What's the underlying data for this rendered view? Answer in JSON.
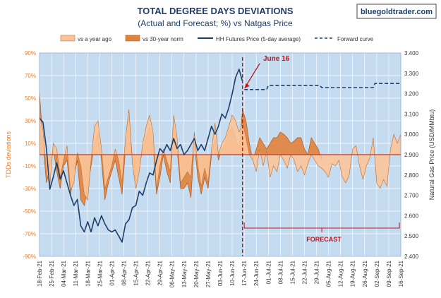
{
  "chart_data": {
    "type": "area",
    "title": "TOTAL DEGREE DAYS DEVIATIONS",
    "subtitle": "(Actual and Forecast; %) vs Natgas Price",
    "brand": "bluegoldtrader.com",
    "ylabel_left": "TDDs deviations",
    "ylabel_right": "Natural Gas Price (USD/MMbtu)",
    "ylim_left": [
      -90,
      90
    ],
    "ylim_right": [
      2.4,
      3.4
    ],
    "yticks_left": [
      "90%",
      "70%",
      "50%",
      "30%",
      "10%",
      "-10%",
      "-30%",
      "-50%",
      "-70%",
      "-90%"
    ],
    "yticks_right": [
      "3.400",
      "3.300",
      "3.200",
      "3.100",
      "3.000",
      "2.900",
      "2.800",
      "2.700",
      "2.600",
      "2.500",
      "2.400"
    ],
    "x_range": [
      "2021-02-18",
      "2021-09-16"
    ],
    "xticks": [
      "18-Feb-21",
      "25-Feb-21",
      "04-Mar-21",
      "11-Mar-21",
      "18-Mar-21",
      "25-Mar-21",
      "01-Apr-21",
      "08-Apr-21",
      "15-Apr-21",
      "22-Apr-21",
      "29-Apr-21",
      "06-May-21",
      "13-May-21",
      "20-May-21",
      "27-May-21",
      "03-Jun-21",
      "10-Jun-21",
      "17-Jun-21",
      "24-Jun-21",
      "01-Jul-21",
      "08-Jul-21",
      "15-Jul-21",
      "22-Jul-21",
      "29-Jul-21",
      "05-Aug-21",
      "12-Aug-21",
      "19-Aug-21",
      "26-Aug-21",
      "02-Sep-21",
      "09-Sep-21",
      "16-Sep-21"
    ],
    "legend": [
      {
        "label": "vs a year ago",
        "kind": "area",
        "color": "#F9C49A"
      },
      {
        "label": "vs 30-year norm",
        "kind": "area",
        "color": "#E0823B"
      },
      {
        "label": "HH Futures Price (5-day average)",
        "kind": "line",
        "color": "#1F3E6B"
      },
      {
        "label": "Forward curve",
        "kind": "dashed",
        "color": "#1F3E6B"
      }
    ],
    "annotations": {
      "marker_label": "June 16",
      "marker_date": "2021-06-16",
      "forecast_label": "FORECAST",
      "forecast_range": [
        "2021-06-17",
        "2021-09-16"
      ]
    },
    "series": [
      {
        "name": "vs a year ago",
        "x": [
          "2021-02-18",
          "2021-02-20",
          "2021-02-22",
          "2021-02-24",
          "2021-02-26",
          "2021-02-28",
          "2021-03-02",
          "2021-03-04",
          "2021-03-06",
          "2021-03-08",
          "2021-03-10",
          "2021-03-12",
          "2021-03-14",
          "2021-03-16",
          "2021-03-18",
          "2021-03-20",
          "2021-03-22",
          "2021-03-24",
          "2021-03-26",
          "2021-03-28",
          "2021-03-30",
          "2021-04-01",
          "2021-04-03",
          "2021-04-05",
          "2021-04-07",
          "2021-04-09",
          "2021-04-11",
          "2021-04-13",
          "2021-04-15",
          "2021-04-17",
          "2021-04-19",
          "2021-04-21",
          "2021-04-23",
          "2021-04-25",
          "2021-04-27",
          "2021-04-29",
          "2021-05-01",
          "2021-05-03",
          "2021-05-05",
          "2021-05-07",
          "2021-05-09",
          "2021-05-11",
          "2021-05-13",
          "2021-05-15",
          "2021-05-17",
          "2021-05-19",
          "2021-05-21",
          "2021-05-23",
          "2021-05-25",
          "2021-05-27",
          "2021-05-29",
          "2021-05-31",
          "2021-06-02",
          "2021-06-04",
          "2021-06-06",
          "2021-06-08",
          "2021-06-10",
          "2021-06-12",
          "2021-06-14",
          "2021-06-16",
          "2021-06-18",
          "2021-06-20",
          "2021-06-22",
          "2021-06-24",
          "2021-06-26",
          "2021-06-28",
          "2021-06-30",
          "2021-07-02",
          "2021-07-04",
          "2021-07-06",
          "2021-07-08",
          "2021-07-10",
          "2021-07-12",
          "2021-07-14",
          "2021-07-16",
          "2021-07-18",
          "2021-07-20",
          "2021-07-22",
          "2021-07-24",
          "2021-07-26",
          "2021-07-28",
          "2021-07-30",
          "2021-08-01",
          "2021-08-03",
          "2021-08-05",
          "2021-08-07",
          "2021-08-09",
          "2021-08-11",
          "2021-08-13",
          "2021-08-15",
          "2021-08-17",
          "2021-08-19",
          "2021-08-21",
          "2021-08-23",
          "2021-08-25",
          "2021-08-27",
          "2021-08-29",
          "2021-08-31",
          "2021-09-02",
          "2021-09-04",
          "2021-09-06",
          "2021-09-08",
          "2021-09-10",
          "2021-09-12",
          "2021-09-14",
          "2021-09-16"
        ],
        "values": [
          35,
          22,
          -15,
          -28,
          10,
          5,
          -20,
          -5,
          8,
          -32,
          -25,
          2,
          -10,
          -35,
          -40,
          -5,
          25,
          30,
          5,
          -30,
          -20,
          -10,
          5,
          -5,
          -25,
          15,
          40,
          -8,
          -30,
          -15,
          10,
          25,
          35,
          20,
          -30,
          -10,
          5,
          -5,
          -15,
          35,
          15,
          -25,
          -20,
          -15,
          -20,
          20,
          -10,
          -28,
          -12,
          -25,
          5,
          28,
          0,
          10,
          15,
          25,
          35,
          30,
          20,
          28,
          15,
          0,
          -5,
          -15,
          5,
          -10,
          3,
          -20,
          -10,
          -15,
          0,
          -5,
          -12,
          0,
          -5,
          -15,
          -10,
          -18,
          -8,
          0,
          -5,
          -10,
          -12,
          -15,
          -20,
          -8,
          -10,
          -5,
          -20,
          -25,
          -18,
          5,
          8,
          -10,
          -22,
          -10,
          -3,
          15,
          -25,
          -30,
          -22,
          -28,
          5,
          18,
          10,
          18
        ]
      },
      {
        "name": "vs 30-year norm",
        "x": [
          "2021-02-18",
          "2021-02-20",
          "2021-02-22",
          "2021-02-24",
          "2021-02-26",
          "2021-02-28",
          "2021-03-02",
          "2021-03-04",
          "2021-03-06",
          "2021-03-08",
          "2021-03-10",
          "2021-03-12",
          "2021-03-14",
          "2021-03-16",
          "2021-03-18",
          "2021-03-20",
          "2021-03-22",
          "2021-03-24",
          "2021-03-26",
          "2021-03-28",
          "2021-03-30",
          "2021-04-01",
          "2021-04-03",
          "2021-04-05",
          "2021-04-07",
          "2021-04-09",
          "2021-04-11",
          "2021-04-13",
          "2021-04-15",
          "2021-04-17",
          "2021-04-19",
          "2021-04-21",
          "2021-04-23",
          "2021-04-25",
          "2021-04-27",
          "2021-04-29",
          "2021-05-01",
          "2021-05-03",
          "2021-05-05",
          "2021-05-07",
          "2021-05-09",
          "2021-05-11",
          "2021-05-13",
          "2021-05-15",
          "2021-05-17",
          "2021-05-19",
          "2021-05-21",
          "2021-05-23",
          "2021-05-25",
          "2021-05-27",
          "2021-05-29",
          "2021-05-31",
          "2021-06-02",
          "2021-06-04",
          "2021-06-06",
          "2021-06-08",
          "2021-06-10",
          "2021-06-12",
          "2021-06-14",
          "2021-06-16",
          "2021-06-18",
          "2021-06-20",
          "2021-06-22",
          "2021-06-24",
          "2021-06-26",
          "2021-06-28",
          "2021-06-30",
          "2021-07-02",
          "2021-07-04",
          "2021-07-06",
          "2021-07-08",
          "2021-07-10",
          "2021-07-12",
          "2021-07-14",
          "2021-07-16",
          "2021-07-18",
          "2021-07-20",
          "2021-07-22",
          "2021-07-24",
          "2021-07-26",
          "2021-07-28",
          "2021-07-30",
          "2021-08-01"
        ],
        "values": [
          55,
          10,
          -25,
          -10,
          5,
          -15,
          -30,
          -10,
          -5,
          -35,
          -20,
          -5,
          -40,
          -45,
          -30,
          -10,
          10,
          20,
          -5,
          -40,
          -25,
          -15,
          -5,
          -20,
          -35,
          5,
          35,
          -5,
          -25,
          -10,
          5,
          15,
          25,
          10,
          -35,
          -20,
          0,
          -15,
          -25,
          25,
          5,
          -30,
          -30,
          -25,
          -38,
          10,
          -20,
          -35,
          -20,
          -30,
          0,
          15,
          -5,
          5,
          10,
          20,
          25,
          15,
          5,
          40,
          30,
          10,
          -5,
          5,
          15,
          10,
          5,
          10,
          15,
          15,
          20,
          18,
          15,
          10,
          12,
          15,
          15,
          5,
          0,
          15,
          10,
          5,
          -5
        ]
      },
      {
        "name": "HH Futures Price (5-day average)",
        "x": [
          "2021-02-18",
          "2021-02-20",
          "2021-02-22",
          "2021-02-24",
          "2021-02-26",
          "2021-02-28",
          "2021-03-02",
          "2021-03-04",
          "2021-03-06",
          "2021-03-08",
          "2021-03-10",
          "2021-03-12",
          "2021-03-14",
          "2021-03-16",
          "2021-03-18",
          "2021-03-20",
          "2021-03-22",
          "2021-03-24",
          "2021-03-26",
          "2021-03-28",
          "2021-03-30",
          "2021-04-01",
          "2021-04-03",
          "2021-04-05",
          "2021-04-07",
          "2021-04-09",
          "2021-04-11",
          "2021-04-13",
          "2021-04-15",
          "2021-04-17",
          "2021-04-19",
          "2021-04-21",
          "2021-04-23",
          "2021-04-25",
          "2021-04-27",
          "2021-04-29",
          "2021-05-01",
          "2021-05-03",
          "2021-05-05",
          "2021-05-07",
          "2021-05-09",
          "2021-05-11",
          "2021-05-13",
          "2021-05-15",
          "2021-05-17",
          "2021-05-19",
          "2021-05-21",
          "2021-05-23",
          "2021-05-25",
          "2021-05-27",
          "2021-05-29",
          "2021-05-31",
          "2021-06-02",
          "2021-06-04",
          "2021-06-06",
          "2021-06-08",
          "2021-06-10",
          "2021-06-12",
          "2021-06-14",
          "2021-06-16"
        ],
        "values": [
          3.08,
          3.06,
          2.93,
          2.73,
          2.79,
          2.86,
          2.78,
          2.82,
          2.76,
          2.7,
          2.65,
          2.68,
          2.55,
          2.52,
          2.57,
          2.52,
          2.59,
          2.55,
          2.6,
          2.56,
          2.53,
          2.52,
          2.53,
          2.5,
          2.47,
          2.56,
          2.58,
          2.64,
          2.65,
          2.72,
          2.7,
          2.76,
          2.81,
          2.8,
          2.87,
          2.93,
          2.91,
          2.95,
          2.92,
          2.98,
          2.93,
          2.95,
          2.9,
          2.92,
          2.95,
          2.98,
          2.92,
          2.95,
          2.92,
          2.98,
          3.04,
          3.0,
          3.04,
          3.1,
          3.08,
          3.13,
          3.2,
          3.28,
          3.32,
          3.26
        ]
      },
      {
        "name": "Forward curve",
        "x": [
          "2021-06-17",
          "2021-06-30",
          "2021-07-01",
          "2021-07-31",
          "2021-08-01",
          "2021-08-31",
          "2021-09-01",
          "2021-09-16"
        ],
        "values": [
          3.22,
          3.22,
          3.24,
          3.24,
          3.23,
          3.23,
          3.25,
          3.25
        ]
      }
    ]
  }
}
